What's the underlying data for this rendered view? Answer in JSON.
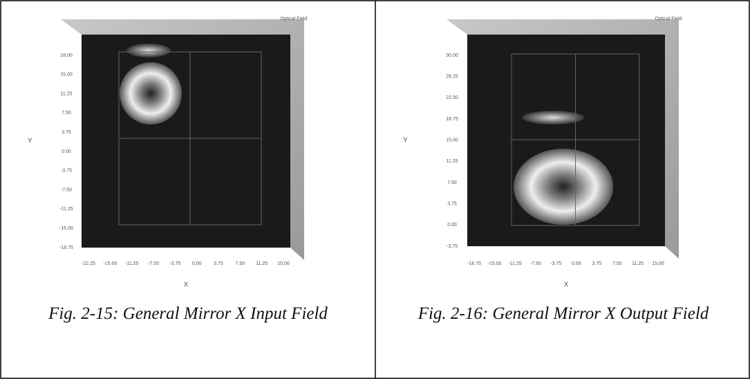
{
  "panels": [
    {
      "title": "Optical Field",
      "y_label": "Y",
      "x_label": "X",
      "y_ticks": [
        "18.00",
        "15.00",
        "11.25",
        "7.50",
        "3.75",
        "0.00",
        "-3.75",
        "-7.50",
        "-11.25",
        "-15.00",
        "-18.75"
      ],
      "x_ticks": [
        "-22.25",
        "-15.00",
        "-11.25",
        "-7.50",
        "-3.75",
        "0.00",
        "3.75",
        "7.50",
        "11.25",
        "15.00"
      ],
      "caption": "Fig. 2-15: General Mirror X Input Field"
    },
    {
      "title": "Optical Field",
      "y_label": "Y",
      "x_label": "X",
      "y_ticks": [
        "30.00",
        "26.25",
        "22.50",
        "18.75",
        "15.00",
        "11.25",
        "7.50",
        "3.75",
        "0.00",
        "-3.75"
      ],
      "x_ticks": [
        "-18.75",
        "-15.00",
        "-11.25",
        "-7.50",
        "-3.75",
        "0.00",
        "3.75",
        "7.50",
        "11.25",
        "15.00"
      ],
      "caption": "Fig. 2-16: General Mirror X Output Field"
    }
  ]
}
